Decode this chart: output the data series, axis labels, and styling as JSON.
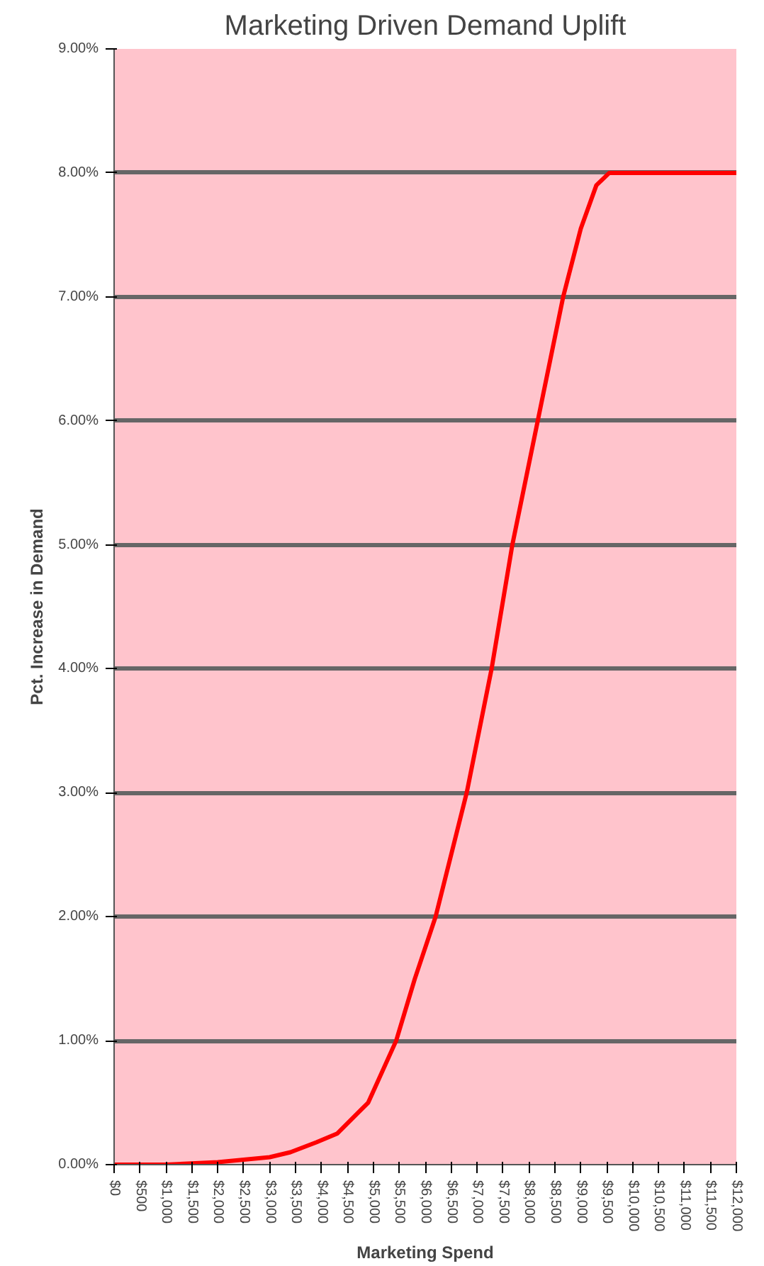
{
  "chart_data": {
    "type": "line",
    "title": "Marketing Driven Demand Uplift",
    "xlabel": "Marketing Spend",
    "ylabel": "Pct. Increase in Demand",
    "series": [
      {
        "color": "#ff0000",
        "x": [
          0,
          1000,
          2000,
          2500,
          3000,
          3400,
          3900,
          4300,
          4900,
          5440,
          5800,
          6200,
          6800,
          7280,
          7680,
          8170,
          8660,
          9000,
          9300,
          9550,
          12000
        ],
        "values": [
          0,
          0,
          0.02,
          0.04,
          0.06,
          0.1,
          0.18,
          0.25,
          0.5,
          1.0,
          1.5,
          2.0,
          3.0,
          4.0,
          5.0,
          6.0,
          7.0,
          7.55,
          7.9,
          8.0,
          8.0
        ]
      }
    ],
    "xlim": [
      0,
      12000
    ],
    "xticks": [
      {
        "value": 0,
        "label": "$0"
      },
      {
        "value": 500,
        "label": "$500"
      },
      {
        "value": 1000,
        "label": "$1,000"
      },
      {
        "value": 1500,
        "label": "$1,500"
      },
      {
        "value": 2000,
        "label": "$2,000"
      },
      {
        "value": 2500,
        "label": "$2,500"
      },
      {
        "value": 3000,
        "label": "$3,000"
      },
      {
        "value": 3500,
        "label": "$3,500"
      },
      {
        "value": 4000,
        "label": "$4,000"
      },
      {
        "value": 4500,
        "label": "$4,500"
      },
      {
        "value": 5000,
        "label": "$5,000"
      },
      {
        "value": 5500,
        "label": "$5,500"
      },
      {
        "value": 6000,
        "label": "$6,000"
      },
      {
        "value": 6500,
        "label": "$6,500"
      },
      {
        "value": 7000,
        "label": "$7,000"
      },
      {
        "value": 7500,
        "label": "$7,500"
      },
      {
        "value": 8000,
        "label": "$8,000"
      },
      {
        "value": 8500,
        "label": "$8,500"
      },
      {
        "value": 9000,
        "label": "$9,000"
      },
      {
        "value": 9500,
        "label": "$9,500"
      },
      {
        "value": 10000,
        "label": "$10,000"
      },
      {
        "value": 10500,
        "label": "$10,500"
      },
      {
        "value": 11000,
        "label": "$11,000"
      },
      {
        "value": 11500,
        "label": "$11,500"
      },
      {
        "value": 12000,
        "label": "$12,000"
      }
    ],
    "ylim": [
      0,
      9
    ],
    "yticks": [
      {
        "value": 0,
        "label": "0.00%"
      },
      {
        "value": 1,
        "label": "1.00%"
      },
      {
        "value": 2,
        "label": "2.00%"
      },
      {
        "value": 3,
        "label": "3.00%"
      },
      {
        "value": 4,
        "label": "4.00%"
      },
      {
        "value": 5,
        "label": "5.00%"
      },
      {
        "value": 6,
        "label": "6.00%"
      },
      {
        "value": 7,
        "label": "7.00%"
      },
      {
        "value": 8,
        "label": "8.00%"
      },
      {
        "value": 9,
        "label": "9.00%"
      }
    ],
    "grid": "y",
    "line_style": "solid"
  }
}
